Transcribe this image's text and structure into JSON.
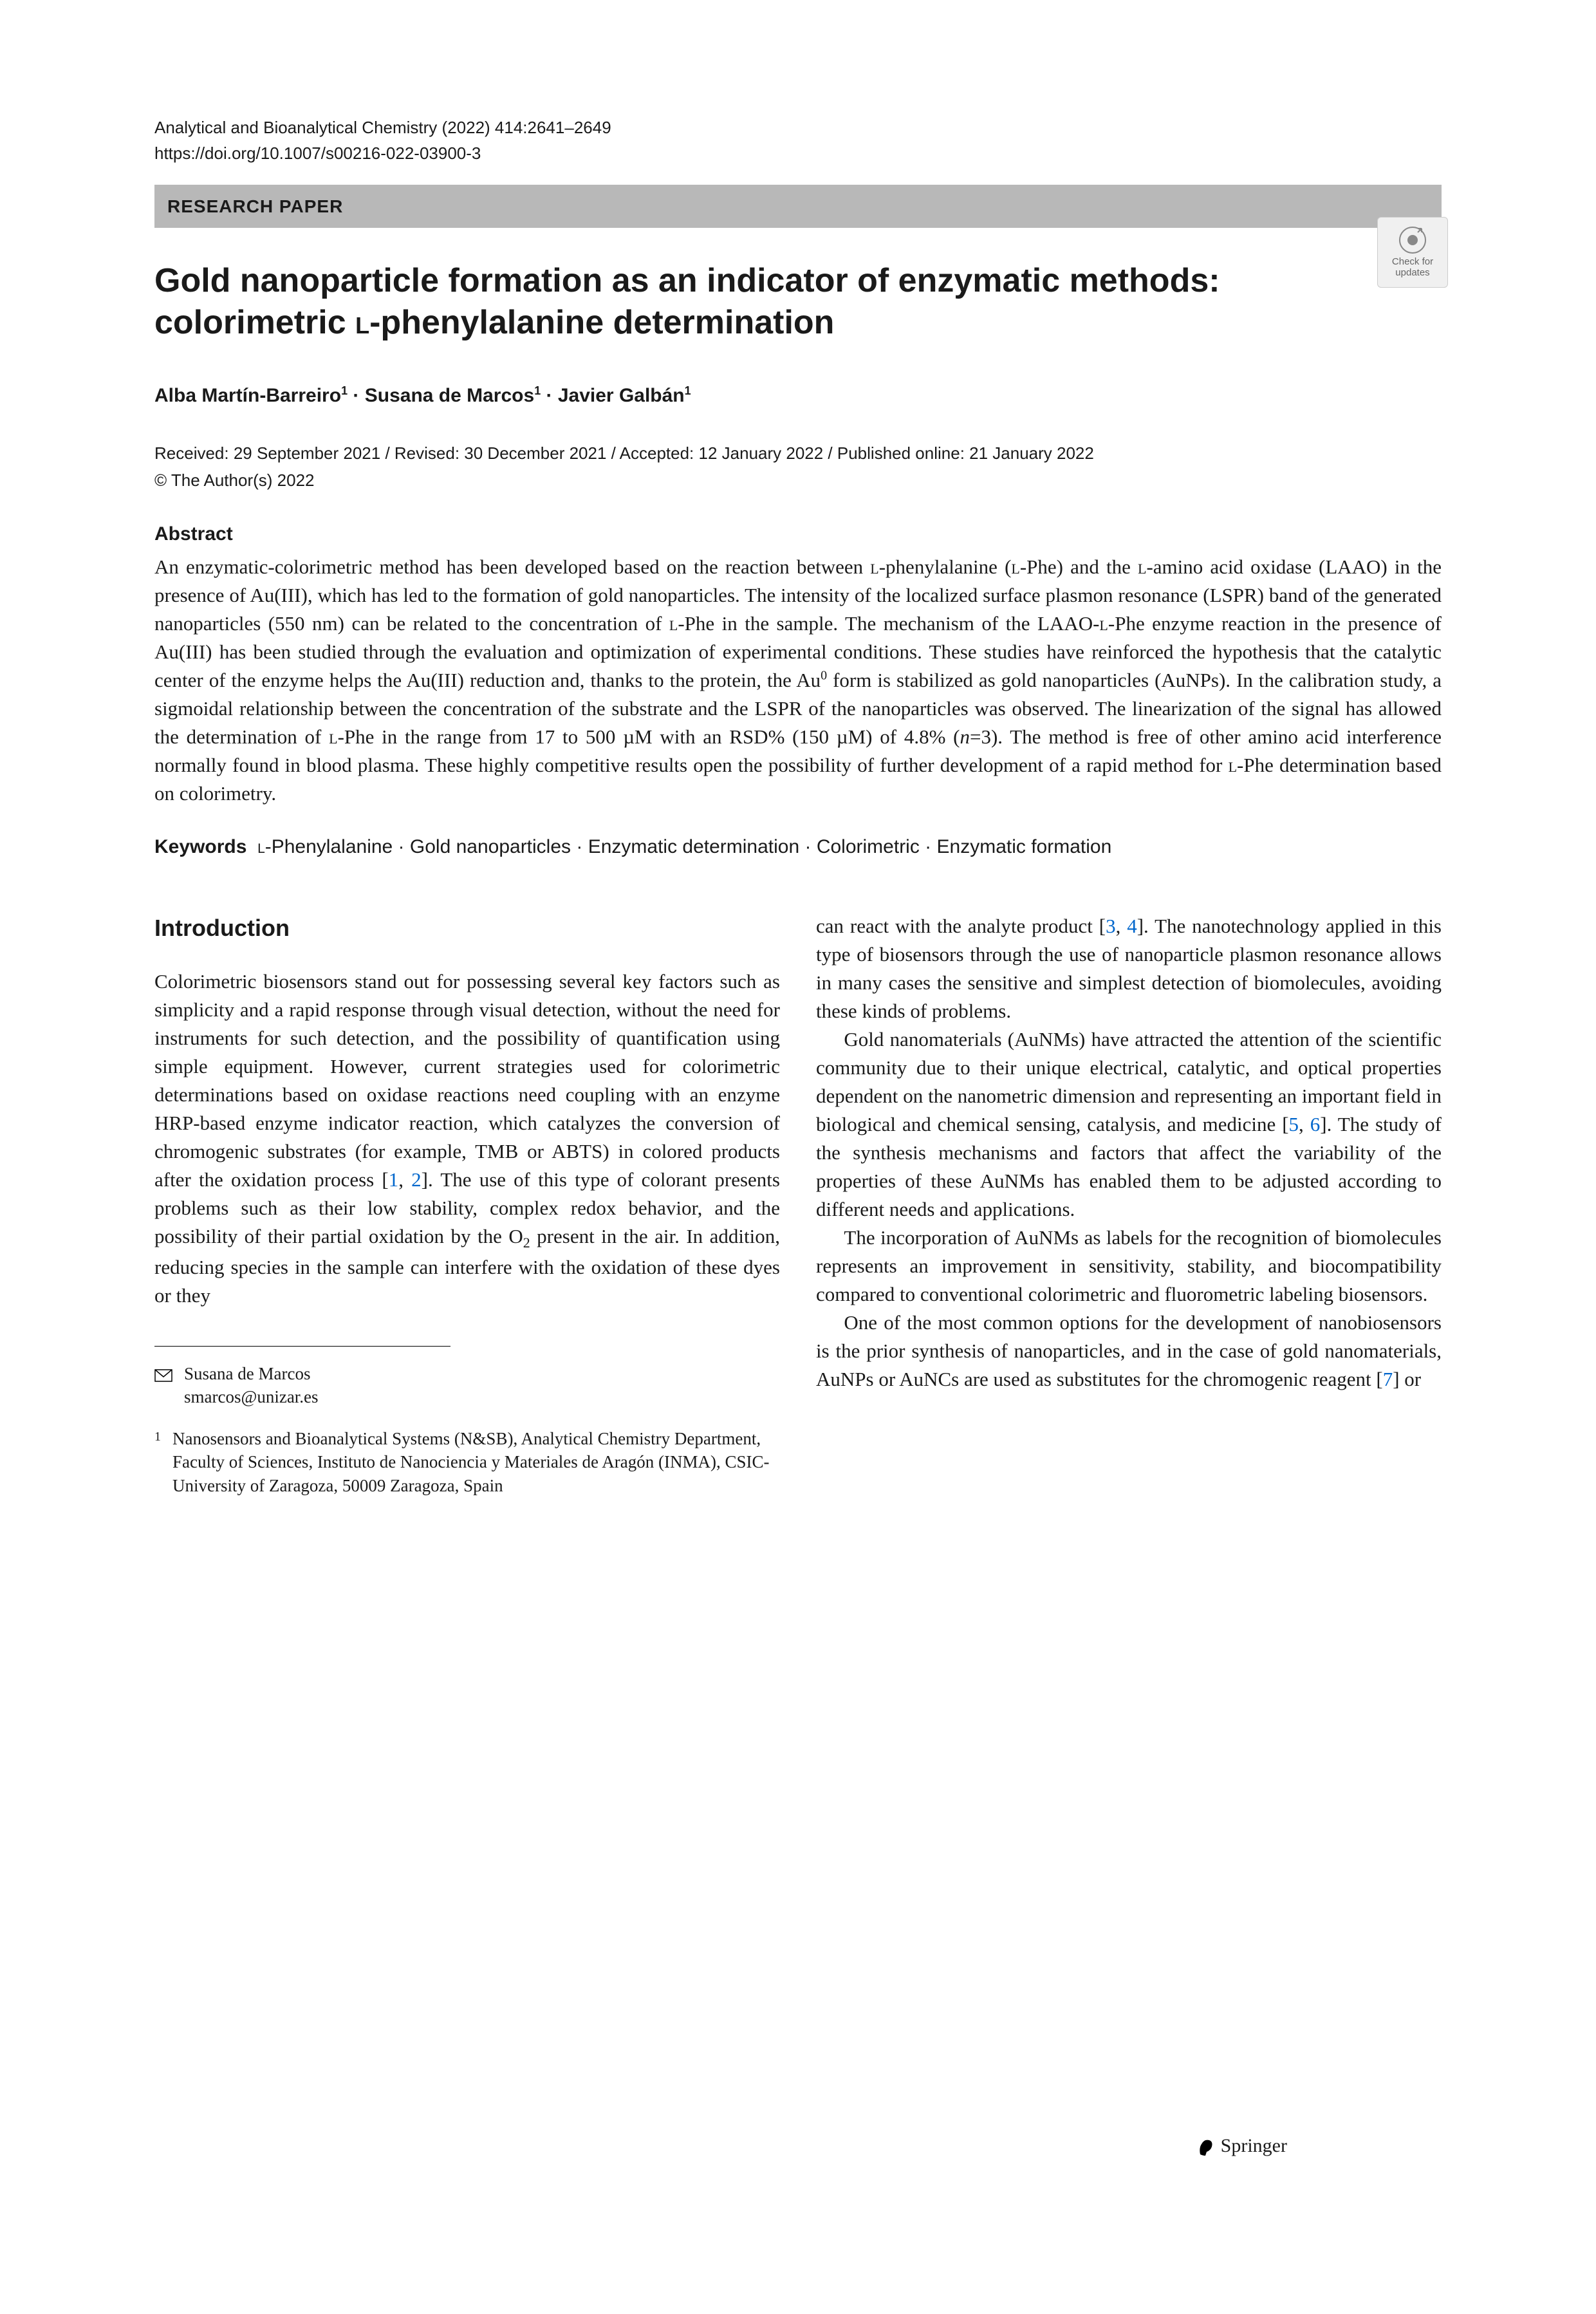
{
  "journal_line": "Analytical and Bioanalytical Chemistry (2022) 414:2641–2649",
  "doi": "https://doi.org/10.1007/s00216-022-03900-3",
  "category": "RESEARCH PAPER",
  "check_updates_label": "Check for updates",
  "title_html": "Gold nanoparticle formation as an indicator of enzymatic methods: colorimetric <span class='smallcaps'>L</span>-phenylalanine determination",
  "authors_html": "Alba Martín-Barreiro<sup>1</sup> · Susana de Marcos<sup>1</sup> · Javier Galbán<sup>1</sup>",
  "dates": "Received: 29 September 2021 / Revised: 30 December 2021 / Accepted: 12 January 2022 / Published online: 21 January 2022",
  "copyright": "© The Author(s) 2022",
  "abstract_heading": "Abstract",
  "abstract_html": "An enzymatic-colorimetric method has been developed based on the reaction between <span class='smallcaps'>L</span>-phenylalanine (<span class='smallcaps'>L</span>-Phe) and the <span class='smallcaps'>L</span>-amino acid oxidase (LAAO) in the presence of Au(III), which has led to the formation of gold nanoparticles. The intensity of the localized surface plasmon resonance (LSPR) band of the generated nanoparticles (550 nm) can be related to the concentration of <span class='smallcaps'>L</span>-Phe in the sample. The mechanism of the LAAO-<span class='smallcaps'>L</span>-Phe enzyme reaction in the presence of Au(III) has been studied through the evaluation and optimization of experimental conditions. These studies have reinforced the hypothesis that the catalytic center of the enzyme helps the Au(III) reduction and, thanks to the protein, the Au<sup>0</sup> form is stabilized as gold nanoparticles (AuNPs). In the calibration study, a sigmoidal relationship between the concentration of the substrate and the LSPR of the nanoparticles was observed. The linearization of the signal has allowed the determination of <span class='smallcaps'>L</span>-Phe in the range from 17 to 500 µM with an RSD% (150 µM) of 4.8% (<i>n</i>=3). The method is free of other amino acid interference normally found in blood plasma. These highly competitive results open the possibility of further development of a rapid method for <span class='smallcaps'>L</span>-Phe determination based on colorimetry.",
  "keywords_label": "Keywords",
  "keywords_html": "<span class='smallcaps'>L</span>-Phenylalanine · Gold nanoparticles · Enzymatic determination · Colorimetric · Enzymatic formation",
  "introduction_heading": "Introduction",
  "col1_p1_html": "Colorimetric biosensors stand out for possessing several key factors such as simplicity and a rapid response through visual detection, without the need for instruments for such detection, and the possibility of quantification using simple equipment. However, current strategies used for colorimetric determinations based on oxidase reactions need coupling with an enzyme HRP-based enzyme indicator reaction, which catalyzes the conversion of chromogenic substrates (for example, TMB or ABTS) in colored products after the oxidation process [<span class='ref-link'>1</span>, <span class='ref-link'>2</span>]. The use of this type of colorant presents problems such as their low stability, complex redox behavior, and the possibility of their partial oxidation by the O<sub>2</sub> present in the air. In addition, reducing species in the sample can interfere with the oxidation of these dyes or they",
  "col2_p1_html": "can react with the analyte product [<span class='ref-link'>3</span>, <span class='ref-link'>4</span>]. The nanotechnology applied in this type of biosensors through the use of nanoparticle plasmon resonance allows in many cases the sensitive and simplest detection of biomolecules, avoiding these kinds of problems.",
  "col2_p2_html": "Gold nanomaterials (AuNMs) have attracted the attention of the scientific community due to their unique electrical, catalytic, and optical properties dependent on the nanometric dimension and representing an important field in biological and chemical sensing, catalysis, and medicine [<span class='ref-link'>5</span>, <span class='ref-link'>6</span>]. The study of the synthesis mechanisms and factors that affect the variability of the properties of these AuNMs has enabled them to be adjusted according to different needs and applications.",
  "col2_p3_html": "The incorporation of AuNMs as labels for the recognition of biomolecules represents an improvement in sensitivity, stability, and biocompatibility compared to conventional colorimetric and fluorometric labeling biosensors.",
  "col2_p4_html": "One of the most common options for the development of nanobiosensors is the prior synthesis of nanoparticles, and in the case of gold nanomaterials, AuNPs or AuNCs are used as substitutes for the chromogenic reagent [<span class='ref-link'>7</span>] or",
  "corresp_name": "Susana de Marcos",
  "corresp_email": "smarcos@unizar.es",
  "affil_num": "1",
  "affil_text": "Nanosensors and Bioanalytical Systems (N&SB), Analytical Chemistry Department, Faculty of Sciences, Instituto de Nanociencia y Materiales de Aragón (INMA), CSIC-University of Zaragoza, 50009 Zaragoza, Spain",
  "publisher": "Springer",
  "colors": {
    "category_bg": "#b8b8b8",
    "link": "#0066cc",
    "text": "#1a1a1a"
  }
}
